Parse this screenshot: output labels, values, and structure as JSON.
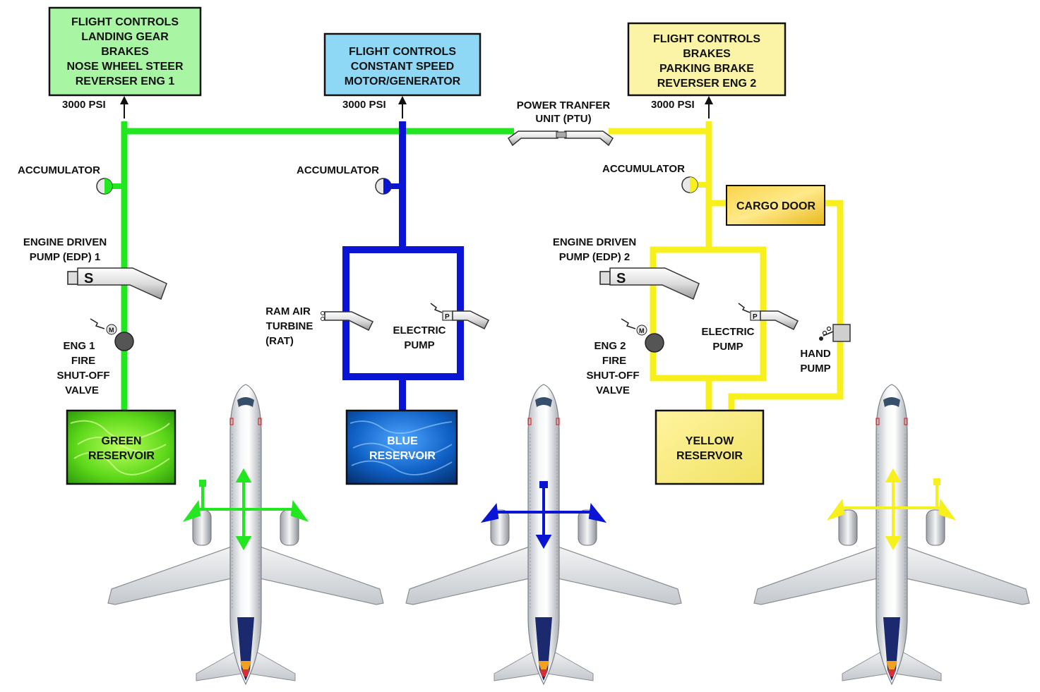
{
  "colors": {
    "green": "#22e61f",
    "blue": "#0a14d4",
    "yellow": "#f7f01c",
    "green_box": "#a8f5a4",
    "blue_box": "#8ed8f5",
    "yellow_box": "#fbf4a6"
  },
  "green_system": {
    "consumers": [
      "FLIGHT CONTROLS",
      "LANDING GEAR",
      "BRAKES",
      "NOSE WHEEL STEER",
      "REVERSER ENG 1"
    ],
    "pressure": "3000 PSI",
    "accumulator": "ACCUMULATOR",
    "pump": [
      "ENGINE DRIVEN",
      "PUMP (EDP) 1"
    ],
    "pump_letter": "S",
    "valve": [
      "ENG 1",
      "FIRE",
      "SHUT-OFF",
      "VALVE"
    ],
    "valve_letter": "M",
    "reservoir": [
      "GREEN",
      "RESERVOIR"
    ]
  },
  "blue_system": {
    "consumers": [
      "FLIGHT CONTROLS",
      "CONSTANT SPEED",
      "MOTOR/GENERATOR"
    ],
    "pressure": "3000 PSI",
    "accumulator": "ACCUMULATOR",
    "rat": [
      "RAM AIR",
      "TURBINE",
      "(RAT)"
    ],
    "electric_pump": [
      "ELECTRIC",
      "PUMP"
    ],
    "pump_letter": "P",
    "reservoir": [
      "BLUE",
      "RESERVOIR"
    ]
  },
  "yellow_system": {
    "consumers": [
      "FLIGHT CONTROLS",
      "BRAKES",
      "PARKING BRAKE",
      "REVERSER ENG 2"
    ],
    "pressure": "3000 PSI",
    "accumulator": "ACCUMULATOR",
    "cargo_door": "CARGO DOOR",
    "pump": [
      "ENGINE DRIVEN",
      "PUMP (EDP) 2"
    ],
    "pump_letter": "S",
    "valve": [
      "ENG 2",
      "FIRE",
      "SHUT-OFF",
      "VALVE"
    ],
    "valve_letter": "M",
    "electric_pump": [
      "ELECTRIC",
      "PUMP"
    ],
    "electric_pump_letter": "P",
    "hand_pump": [
      "HAND",
      "PUMP"
    ],
    "reservoir": [
      "YELLOW",
      "RESERVOIR"
    ]
  },
  "ptu": [
    "POWER TRANFER",
    "UNIT (PTU)"
  ]
}
